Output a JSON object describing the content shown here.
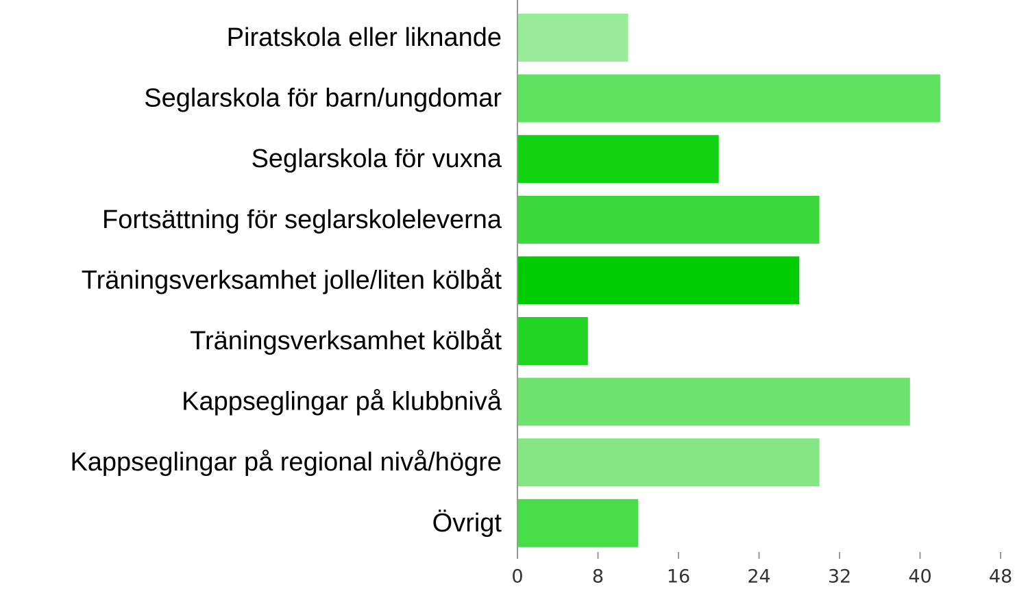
{
  "chart_data": {
    "type": "bar",
    "orientation": "horizontal",
    "categories": [
      "Piratskola eller liknande",
      "Seglarskola för barn/ungdomar",
      "Seglarskola för vuxna",
      "Fortsättning för seglarskoleleverna",
      "Träningsverksamhet jolle/liten kölbåt",
      "Träningsverksamhet kölbåt",
      "Kappseglingar på klubbnivå",
      "Kappseglingar på regional nivå/högre",
      "Övrigt"
    ],
    "values": [
      11,
      42,
      20,
      30,
      28,
      7,
      39,
      30,
      12
    ],
    "colors": [
      "#98eb98",
      "#5de35d",
      "#12d312",
      "#3bd93b",
      "#00cc00",
      "#22d522",
      "#6ee46e",
      "#84e784",
      "#48dc48"
    ],
    "xlim": [
      0,
      48
    ],
    "xticks": [
      0,
      8,
      16,
      24,
      32,
      40,
      48
    ],
    "grid": false
  }
}
